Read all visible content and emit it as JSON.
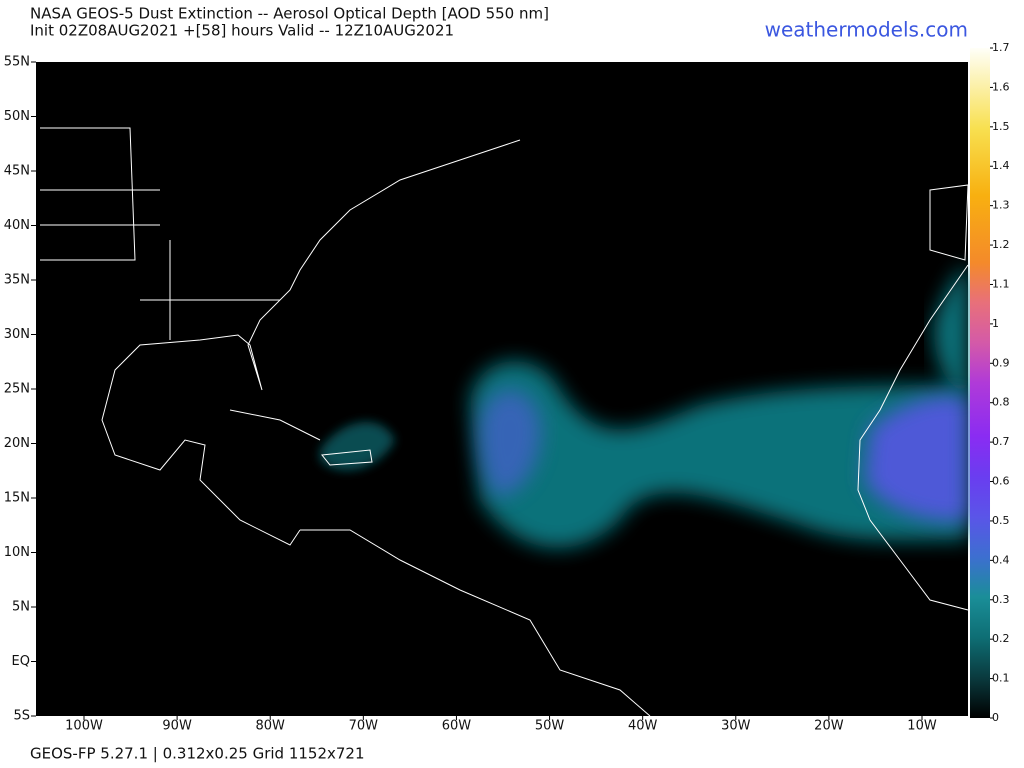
{
  "header": {
    "title": "NASA GEOS-5 Dust Extinction -- Aerosol Optical Depth [AOD 550 nm]",
    "subtitle": "Init 02Z08AUG2021 +[58] hours Valid -- 12Z10AUG2021",
    "site": "weathermodels.com"
  },
  "map": {
    "lat_labels": [
      "55N",
      "50N",
      "45N",
      "40N",
      "35N",
      "30N",
      "25N",
      "20N",
      "15N",
      "10N",
      "5N",
      "EQ",
      "5S"
    ],
    "lon_labels": [
      "100W",
      "90W",
      "80W",
      "70W",
      "60W",
      "50W",
      "40W",
      "30W",
      "20W",
      "10W"
    ]
  },
  "colorbar": {
    "lim": [
      0,
      1.7
    ],
    "ticks": [
      0,
      0.1,
      0.2,
      0.3,
      0.4,
      0.5,
      0.6,
      0.7,
      0.8,
      0.9,
      1,
      1.1,
      1.2,
      1.3,
      1.4,
      1.5,
      1.6,
      1.7
    ]
  },
  "footer": "GEOS-FP 5.27.1 | 0.312x0.25 Grid 1152x721"
}
